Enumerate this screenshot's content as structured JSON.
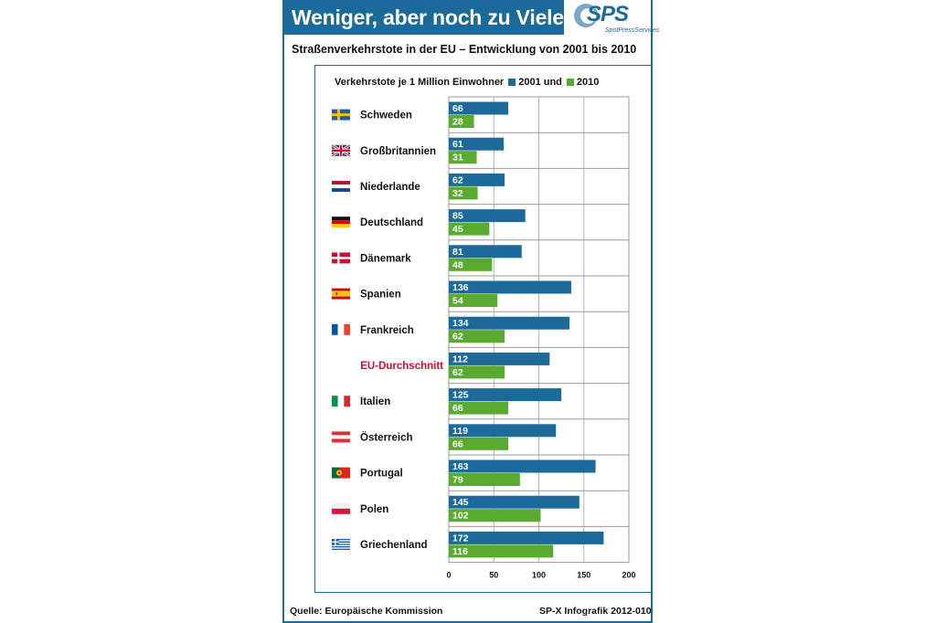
{
  "headline": "Weniger, aber noch zu Viele",
  "logo": {
    "name": "SPS",
    "tagline": "SpotPressServices"
  },
  "subtitle": "Straßenverkehrstote in der EU – Entwicklung von 2001 bis 2010",
  "legend": {
    "label": "Verkehrstote je 1 Million Einwohner",
    "series1": "2001 und",
    "series2": "2010"
  },
  "footer": {
    "source": "Quelle: Europäische Kommission",
    "credit": "SP-X Infografik 2012-010"
  },
  "colors": {
    "blue": "#1b6a9a",
    "green": "#5aaa32",
    "highlight": "#c8102e"
  },
  "chart_data": {
    "type": "bar",
    "orientation": "horizontal",
    "categories": [
      "Schweden",
      "Großbritannien",
      "Niederlande",
      "Deutschland",
      "Dänemark",
      "Spanien",
      "Frankreich",
      "EU-Durchschnitt",
      "Italien",
      "Österreich",
      "Portugal",
      "Polen",
      "Griechenland"
    ],
    "flags": [
      "se",
      "gb",
      "nl",
      "de",
      "dk",
      "es",
      "fr",
      "",
      "it",
      "at",
      "pt",
      "pl",
      "gr"
    ],
    "highlight_category": "EU-Durchschnitt",
    "series": [
      {
        "name": "2001",
        "color": "#1b6a9a",
        "values": [
          66,
          61,
          62,
          85,
          81,
          136,
          134,
          112,
          125,
          119,
          163,
          145,
          172
        ]
      },
      {
        "name": "2010",
        "color": "#5aaa32",
        "values": [
          28,
          31,
          32,
          45,
          48,
          54,
          62,
          62,
          66,
          66,
          79,
          102,
          116
        ]
      }
    ],
    "xlim": [
      0,
      200
    ],
    "xticks": [
      0,
      50,
      100,
      150,
      200
    ],
    "grid": true,
    "legend": "top"
  }
}
